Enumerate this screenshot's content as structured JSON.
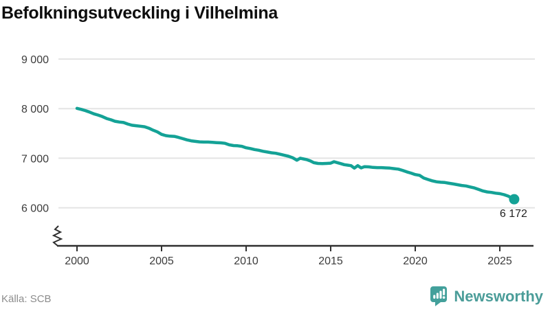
{
  "title": "Befolkningsutveckling i Vilhelmina",
  "source": "Källa: SCB",
  "branding": {
    "name": "Newsworthy",
    "icon": "newsworthy-speech-bubble-bar-chart-icon",
    "wordmark_color": "#4b9d99",
    "icon_color": "#43a09b"
  },
  "chart_data": {
    "type": "line",
    "title": "Befolkningsutveckling i Vilhelmina",
    "xlabel": "",
    "ylabel": "",
    "grid": "horizontal",
    "axis_break": true,
    "legend": "none",
    "line_color": "#14a296",
    "grid_color": "#e4e4e4",
    "axis_color": "#2f2f2f",
    "xlim": [
      1998.9,
      2027.1
    ],
    "ylim": [
      6000,
      9000
    ],
    "x_tick_values": [
      2000,
      2005,
      2010,
      2015,
      2020,
      2025
    ],
    "x_tick_labels": [
      "2000",
      "2005",
      "2010",
      "2015",
      "2020",
      "2025"
    ],
    "y_tick_values": [
      9000,
      8000,
      7000,
      6000
    ],
    "y_tick_labels": [
      "9 000",
      "8 000",
      "7 000",
      "6 000"
    ],
    "end_point": {
      "x": 2025.85,
      "value": 6172,
      "label": "6 172"
    },
    "series": [
      {
        "name": "Befolkning",
        "points": [
          [
            2000.0,
            8005
          ],
          [
            2000.25,
            7985
          ],
          [
            2000.5,
            7960
          ],
          [
            2000.75,
            7930
          ],
          [
            2001.0,
            7895
          ],
          [
            2001.25,
            7870
          ],
          [
            2001.5,
            7840
          ],
          [
            2001.75,
            7800
          ],
          [
            2002.0,
            7775
          ],
          [
            2002.25,
            7745
          ],
          [
            2002.5,
            7730
          ],
          [
            2002.75,
            7720
          ],
          [
            2003.0,
            7690
          ],
          [
            2003.25,
            7665
          ],
          [
            2003.5,
            7655
          ],
          [
            2003.75,
            7645
          ],
          [
            2004.0,
            7635
          ],
          [
            2004.25,
            7605
          ],
          [
            2004.5,
            7565
          ],
          [
            2004.75,
            7530
          ],
          [
            2005.0,
            7480
          ],
          [
            2005.25,
            7455
          ],
          [
            2005.5,
            7445
          ],
          [
            2005.75,
            7440
          ],
          [
            2006.0,
            7420
          ],
          [
            2006.25,
            7395
          ],
          [
            2006.5,
            7370
          ],
          [
            2006.75,
            7350
          ],
          [
            2007.0,
            7340
          ],
          [
            2007.25,
            7330
          ],
          [
            2007.5,
            7325
          ],
          [
            2007.75,
            7325
          ],
          [
            2008.0,
            7320
          ],
          [
            2008.25,
            7315
          ],
          [
            2008.5,
            7310
          ],
          [
            2008.75,
            7300
          ],
          [
            2009.0,
            7270
          ],
          [
            2009.25,
            7255
          ],
          [
            2009.5,
            7250
          ],
          [
            2009.75,
            7240
          ],
          [
            2010.0,
            7210
          ],
          [
            2010.25,
            7195
          ],
          [
            2010.5,
            7175
          ],
          [
            2010.75,
            7160
          ],
          [
            2011.0,
            7140
          ],
          [
            2011.25,
            7125
          ],
          [
            2011.5,
            7110
          ],
          [
            2011.75,
            7100
          ],
          [
            2012.0,
            7080
          ],
          [
            2012.25,
            7060
          ],
          [
            2012.5,
            7040
          ],
          [
            2012.75,
            7010
          ],
          [
            2013.0,
            6960
          ],
          [
            2013.2,
            7000
          ],
          [
            2013.4,
            6985
          ],
          [
            2013.6,
            6970
          ],
          [
            2013.8,
            6945
          ],
          [
            2014.0,
            6910
          ],
          [
            2014.25,
            6895
          ],
          [
            2014.5,
            6890
          ],
          [
            2014.75,
            6895
          ],
          [
            2015.0,
            6900
          ],
          [
            2015.2,
            6930
          ],
          [
            2015.4,
            6910
          ],
          [
            2015.6,
            6890
          ],
          [
            2015.8,
            6870
          ],
          [
            2016.0,
            6860
          ],
          [
            2016.2,
            6850
          ],
          [
            2016.4,
            6800
          ],
          [
            2016.6,
            6850
          ],
          [
            2016.8,
            6805
          ],
          [
            2017.0,
            6830
          ],
          [
            2017.25,
            6825
          ],
          [
            2017.5,
            6815
          ],
          [
            2017.75,
            6810
          ],
          [
            2018.0,
            6810
          ],
          [
            2018.25,
            6805
          ],
          [
            2018.5,
            6800
          ],
          [
            2018.75,
            6790
          ],
          [
            2019.0,
            6780
          ],
          [
            2019.25,
            6755
          ],
          [
            2019.5,
            6725
          ],
          [
            2019.75,
            6700
          ],
          [
            2020.0,
            6670
          ],
          [
            2020.25,
            6655
          ],
          [
            2020.5,
            6600
          ],
          [
            2020.75,
            6570
          ],
          [
            2021.0,
            6545
          ],
          [
            2021.25,
            6525
          ],
          [
            2021.5,
            6515
          ],
          [
            2021.75,
            6510
          ],
          [
            2022.0,
            6495
          ],
          [
            2022.25,
            6480
          ],
          [
            2022.5,
            6465
          ],
          [
            2022.75,
            6450
          ],
          [
            2023.0,
            6440
          ],
          [
            2023.25,
            6420
          ],
          [
            2023.5,
            6400
          ],
          [
            2023.75,
            6370
          ],
          [
            2024.0,
            6340
          ],
          [
            2024.25,
            6320
          ],
          [
            2024.5,
            6310
          ],
          [
            2024.75,
            6295
          ],
          [
            2025.0,
            6285
          ],
          [
            2025.25,
            6265
          ],
          [
            2025.5,
            6235
          ],
          [
            2025.7,
            6200
          ],
          [
            2025.85,
            6172
          ]
        ]
      }
    ]
  }
}
